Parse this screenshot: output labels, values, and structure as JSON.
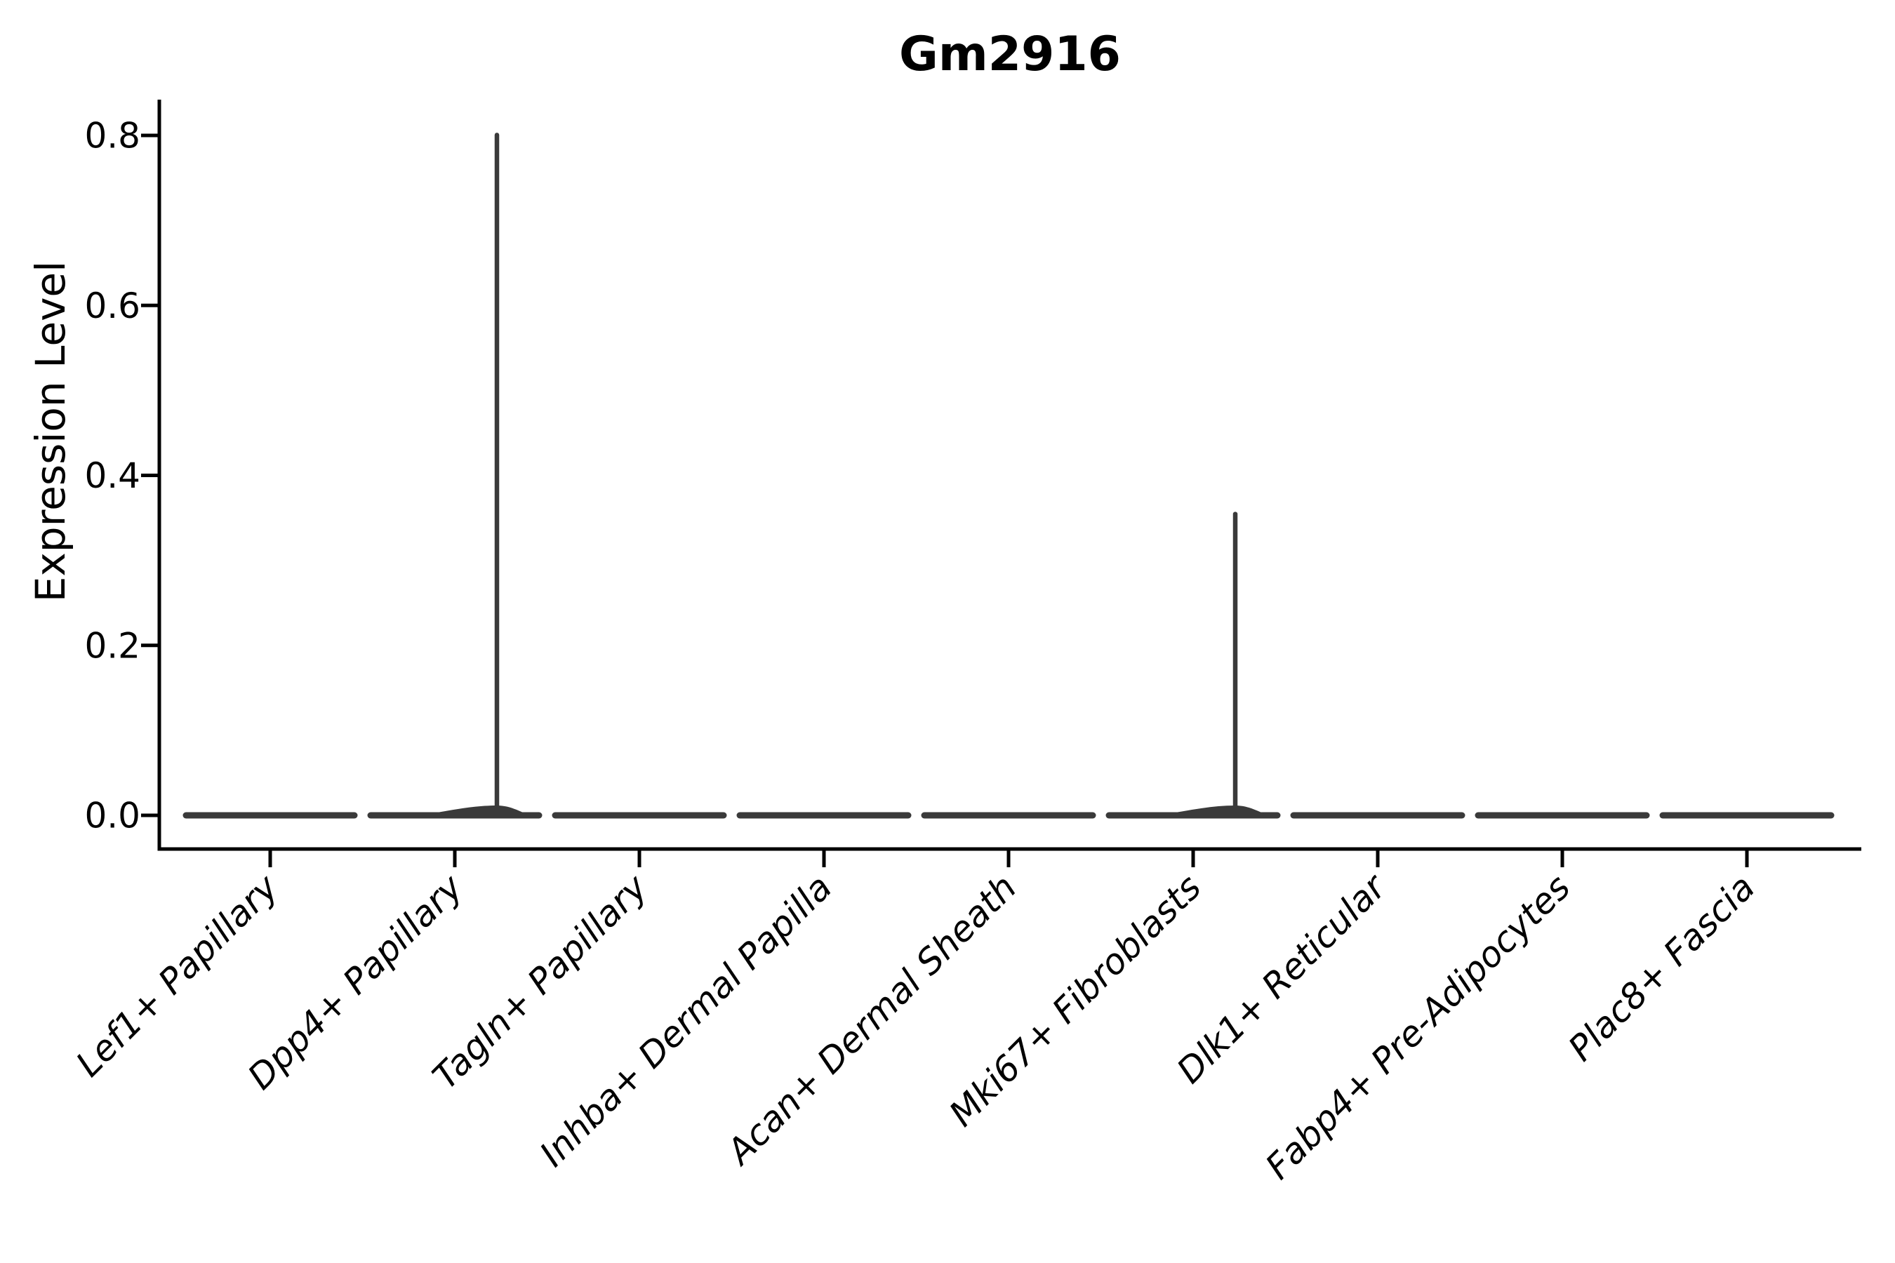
{
  "figure": {
    "title": "Gm2916",
    "background": "#ffffff"
  },
  "chart_data": {
    "type": "violin",
    "title": "Gm2916",
    "xlabel": "",
    "ylabel": "Expression Level",
    "grid": false,
    "legend": false,
    "ylim": [
      -0.04,
      0.84
    ],
    "ytick_values": [
      0.0,
      0.2,
      0.4,
      0.6,
      0.8
    ],
    "ytick_labels": [
      "0.0",
      "0.2",
      "0.4",
      "0.6",
      "0.8"
    ],
    "categories": [
      "Lef1+ Papillary",
      "Dpp4+ Papillary",
      "Tagln+ Papillary",
      "Inhba+ Dermal Papilla",
      "Acan+ Dermal Sheath",
      "Mki67+ Fibroblasts",
      "Dlk1+ Reticular",
      "Fabp4+ Pre-Adipocytes",
      "Plac8+ Fascia"
    ],
    "series": [
      {
        "category": "Lef1+ Papillary",
        "baseline": 0.0,
        "peak": 0.0
      },
      {
        "category": "Dpp4+ Papillary",
        "baseline": 0.0,
        "peak": 0.803
      },
      {
        "category": "Tagln+ Papillary",
        "baseline": 0.0,
        "peak": 0.0
      },
      {
        "category": "Inhba+ Dermal Papilla",
        "baseline": 0.0,
        "peak": 0.0
      },
      {
        "category": "Acan+ Dermal Sheath",
        "baseline": 0.0,
        "peak": 0.0
      },
      {
        "category": "Mki67+ Fibroblasts",
        "baseline": 0.0,
        "peak": 0.357
      },
      {
        "category": "Dlk1+ Reticular",
        "baseline": 0.0,
        "peak": 0.0
      },
      {
        "category": "Fabp4+ Pre-Adipocytes",
        "baseline": 0.0,
        "peak": 0.0
      },
      {
        "category": "Plac8+ Fascia",
        "baseline": 0.0,
        "peak": 0.0
      }
    ],
    "style": {
      "violin_color": "#3a3a3a",
      "axis_color": "#000000",
      "text_color": "#000000",
      "background": "#ffffff"
    }
  }
}
